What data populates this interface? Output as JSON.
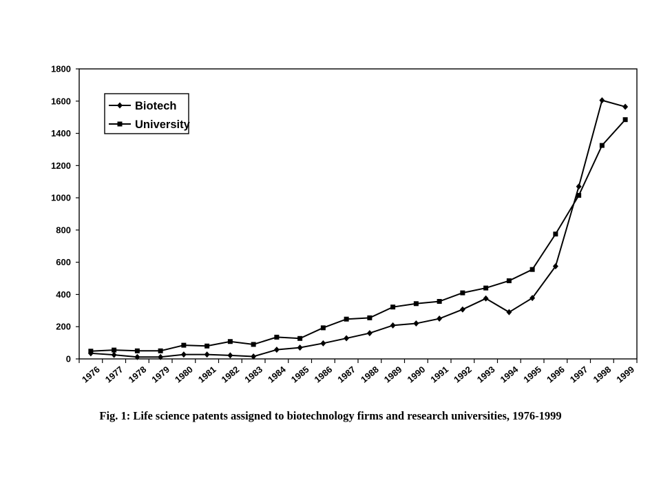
{
  "chart_data": {
    "type": "line",
    "x": [
      "1976",
      "1977",
      "1978",
      "1979",
      "1980",
      "1981",
      "1982",
      "1983",
      "1984",
      "1985",
      "1986",
      "1987",
      "1988",
      "1989",
      "1990",
      "1991",
      "1992",
      "1993",
      "1994",
      "1995",
      "1996",
      "1997",
      "1998",
      "1999"
    ],
    "series": [
      {
        "name": "Biotech",
        "marker": "diamond",
        "values": [
          35,
          25,
          12,
          12,
          27,
          27,
          22,
          15,
          57,
          70,
          97,
          128,
          160,
          208,
          220,
          250,
          307,
          375,
          290,
          378,
          575,
          1070,
          1605,
          1565
        ]
      },
      {
        "name": "University",
        "marker": "square",
        "values": [
          48,
          55,
          50,
          50,
          85,
          80,
          108,
          90,
          135,
          127,
          193,
          247,
          255,
          322,
          343,
          357,
          410,
          440,
          485,
          555,
          775,
          1015,
          1325,
          1485
        ]
      }
    ],
    "ylim": [
      0,
      1800
    ],
    "yticks": [
      0,
      200,
      400,
      600,
      800,
      1000,
      1200,
      1400,
      1600,
      1800
    ],
    "xlabel": "",
    "ylabel": "",
    "legend_position": "top-left",
    "grid": false,
    "line_color": "#000000"
  },
  "caption": "Fig. 1: Life science patents assigned to biotechnology firms and research universities, 1976-1999"
}
